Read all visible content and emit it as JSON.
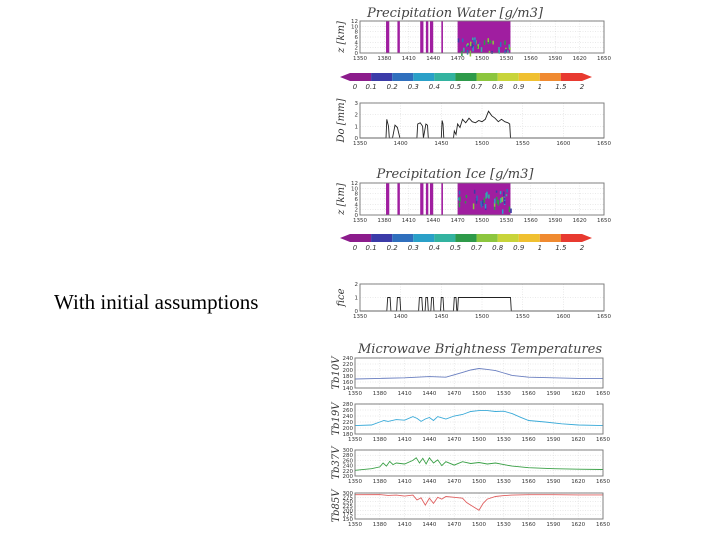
{
  "caption": "With initial assumptions",
  "colors": {
    "background": "#a01ea0",
    "colorbar": [
      "#8c1c8c",
      "#3b3ba8",
      "#2f6fbd",
      "#2aa0c8",
      "#33b3a0",
      "#2e9a4a",
      "#8cc63e",
      "#c8d43a",
      "#f0c030",
      "#f08a30",
      "#e83a30"
    ],
    "tb_series": [
      "#6a7fc0",
      "#3aaad8",
      "#3aa046",
      "#e06060"
    ]
  },
  "chart_data": [
    {
      "type": "heatmap",
      "title": "Precipitation Water [g/m3]",
      "ylabel": "z [km]",
      "xticks": [
        1350,
        1380,
        1410,
        1440,
        1470,
        1500,
        1530,
        1560,
        1590,
        1620,
        1650
      ],
      "yticks": [
        0,
        2,
        4,
        6,
        8,
        10,
        12
      ],
      "xlim": [
        1350,
        1650
      ],
      "ylim": [
        0,
        12
      ],
      "colorbar_ticks": [
        "0",
        "0.1",
        "0.2",
        "0.3",
        "0.4",
        "0.5",
        "0.7",
        "0.8",
        "0.9",
        "1",
        "1.5",
        "2"
      ],
      "cloud_segments": [
        [
          1382,
          1386
        ],
        [
          1396,
          1399
        ],
        [
          1424,
          1428
        ],
        [
          1431,
          1434
        ],
        [
          1436,
          1440
        ],
        [
          1450,
          1452
        ],
        [
          1470,
          1535
        ]
      ]
    },
    {
      "type": "line",
      "ylabel": "Do [mm]",
      "xticks": [
        1350,
        1400,
        1450,
        1500,
        1550,
        1600,
        1650
      ],
      "yticks": [
        0,
        1,
        2,
        3
      ],
      "xlim": [
        1350,
        1650
      ],
      "ylim": [
        0,
        3
      ],
      "x": [
        1350,
        1382,
        1383,
        1385,
        1386,
        1390,
        1393,
        1396,
        1399,
        1420,
        1421,
        1424,
        1427,
        1428,
        1431,
        1433,
        1434,
        1450,
        1451,
        1452,
        1453,
        1465,
        1466,
        1468,
        1470,
        1473,
        1476,
        1480,
        1484,
        1488,
        1492,
        1496,
        1500,
        1504,
        1508,
        1512,
        1516,
        1520,
        1524,
        1528,
        1532,
        1534,
        1535,
        1650
      ],
      "y": [
        0,
        0,
        1.6,
        1.0,
        0,
        0,
        1.1,
        0.9,
        0,
        0,
        1.2,
        1.3,
        1.0,
        0,
        1.2,
        1.1,
        0,
        0,
        1.5,
        1.2,
        0,
        0,
        0.6,
        0.3,
        1.2,
        0.9,
        1.6,
        1.3,
        1.7,
        1.4,
        1.3,
        1.5,
        1.4,
        1.6,
        2.3,
        1.9,
        1.7,
        1.4,
        1.6,
        1.4,
        1.3,
        1.2,
        0,
        0
      ]
    },
    {
      "type": "heatmap",
      "title": "Precipitation Ice [g/m3]",
      "ylabel": "z [km]",
      "xticks": [
        1350,
        1380,
        1410,
        1440,
        1470,
        1500,
        1530,
        1560,
        1590,
        1620,
        1650
      ],
      "yticks": [
        0,
        2,
        4,
        6,
        8,
        10,
        12
      ],
      "xlim": [
        1350,
        1650
      ],
      "ylim": [
        0,
        12
      ],
      "colorbar_ticks": [
        "0",
        "0.1",
        "0.2",
        "0.3",
        "0.4",
        "0.5",
        "0.7",
        "0.8",
        "0.9",
        "1",
        "1.5",
        "2"
      ],
      "cloud_segments": [
        [
          1382,
          1386
        ],
        [
          1396,
          1399
        ],
        [
          1424,
          1428
        ],
        [
          1431,
          1434
        ],
        [
          1436,
          1440
        ],
        [
          1450,
          1452
        ],
        [
          1470,
          1535
        ]
      ]
    },
    {
      "type": "line",
      "ylabel": "fice",
      "xticks": [
        1350,
        1400,
        1450,
        1500,
        1550,
        1600,
        1650
      ],
      "yticks": [
        0,
        1,
        2
      ],
      "xlim": [
        1350,
        1650
      ],
      "ylim": [
        0,
        2
      ],
      "x": [
        1350,
        1383,
        1384,
        1387,
        1388,
        1395,
        1396,
        1399,
        1400,
        1422,
        1423,
        1426,
        1427,
        1430,
        1431,
        1433,
        1434,
        1437,
        1438,
        1440,
        1441,
        1449,
        1450,
        1452,
        1453,
        1465,
        1466,
        1468,
        1469,
        1470,
        1471,
        1535,
        1536,
        1650
      ],
      "y": [
        0,
        0,
        1,
        1,
        0,
        0,
        1,
        1,
        0,
        0,
        1,
        1,
        0,
        0,
        1,
        1,
        0,
        0,
        1,
        1,
        0,
        0,
        1,
        1,
        0,
        0,
        1,
        1,
        0,
        0,
        1,
        1,
        0,
        0
      ]
    },
    {
      "type": "line",
      "title": "Microwave Brightness Temperatures",
      "ylabel": "Tb10V",
      "xticks": [
        1350,
        1380,
        1410,
        1440,
        1470,
        1500,
        1530,
        1560,
        1590,
        1620,
        1650
      ],
      "yticks": [
        140,
        160,
        180,
        200,
        220,
        240
      ],
      "xlim": [
        1350,
        1650
      ],
      "ylim": [
        140,
        240
      ],
      "x": [
        1350,
        1380,
        1410,
        1440,
        1460,
        1470,
        1480,
        1490,
        1500,
        1510,
        1520,
        1530,
        1540,
        1560,
        1590,
        1620,
        1650
      ],
      "y": [
        170,
        172,
        174,
        178,
        176,
        184,
        192,
        200,
        205,
        202,
        198,
        190,
        182,
        176,
        174,
        172,
        172
      ]
    },
    {
      "type": "line",
      "ylabel": "Tb19V",
      "xticks": [
        1350,
        1380,
        1410,
        1440,
        1470,
        1500,
        1530,
        1560,
        1590,
        1620,
        1650
      ],
      "yticks": [
        180,
        200,
        220,
        240,
        260,
        280
      ],
      "xlim": [
        1350,
        1650
      ],
      "ylim": [
        180,
        280
      ],
      "x": [
        1350,
        1370,
        1385,
        1390,
        1400,
        1410,
        1420,
        1425,
        1430,
        1435,
        1440,
        1445,
        1450,
        1460,
        1470,
        1480,
        1490,
        1500,
        1510,
        1520,
        1530,
        1540,
        1550,
        1560,
        1580,
        1600,
        1620,
        1650
      ],
      "y": [
        208,
        210,
        225,
        222,
        228,
        226,
        238,
        232,
        222,
        230,
        235,
        225,
        238,
        230,
        240,
        245,
        255,
        258,
        258,
        255,
        256,
        248,
        236,
        225,
        220,
        214,
        210,
        208
      ]
    },
    {
      "type": "line",
      "ylabel": "Tb37V",
      "xticks": [
        1350,
        1380,
        1410,
        1440,
        1470,
        1500,
        1530,
        1560,
        1590,
        1620,
        1650
      ],
      "yticks": [
        200,
        220,
        240,
        260,
        280,
        300
      ],
      "xlim": [
        1350,
        1650
      ],
      "ylim": [
        200,
        300
      ],
      "x": [
        1350,
        1370,
        1380,
        1384,
        1388,
        1392,
        1396,
        1400,
        1410,
        1420,
        1424,
        1428,
        1432,
        1436,
        1440,
        1445,
        1450,
        1455,
        1460,
        1470,
        1480,
        1490,
        1500,
        1510,
        1520,
        1530,
        1540,
        1560,
        1590,
        1620,
        1650
      ],
      "y": [
        222,
        228,
        235,
        250,
        238,
        256,
        244,
        250,
        246,
        260,
        270,
        250,
        268,
        246,
        270,
        250,
        262,
        240,
        255,
        242,
        255,
        248,
        252,
        246,
        250,
        244,
        238,
        232,
        228,
        226,
        225
      ]
    },
    {
      "type": "line",
      "ylabel": "Tb85V",
      "xticks": [
        1350,
        1380,
        1410,
        1440,
        1470,
        1500,
        1530,
        1560,
        1590,
        1620,
        1650
      ],
      "yticks": [
        150,
        175,
        200,
        225,
        250,
        275,
        300
      ],
      "xlim": [
        1350,
        1650
      ],
      "ylim": [
        150,
        300
      ],
      "x": [
        1350,
        1380,
        1390,
        1400,
        1410,
        1420,
        1425,
        1430,
        1435,
        1440,
        1445,
        1450,
        1455,
        1460,
        1470,
        1480,
        1485,
        1490,
        1495,
        1500,
        1505,
        1510,
        1520,
        1530,
        1540,
        1560,
        1590,
        1620,
        1650
      ],
      "y": [
        290,
        291,
        286,
        288,
        282,
        288,
        260,
        272,
        230,
        270,
        240,
        275,
        265,
        280,
        275,
        270,
        245,
        230,
        215,
        200,
        240,
        265,
        280,
        285,
        288,
        290,
        290,
        289,
        289
      ]
    }
  ]
}
